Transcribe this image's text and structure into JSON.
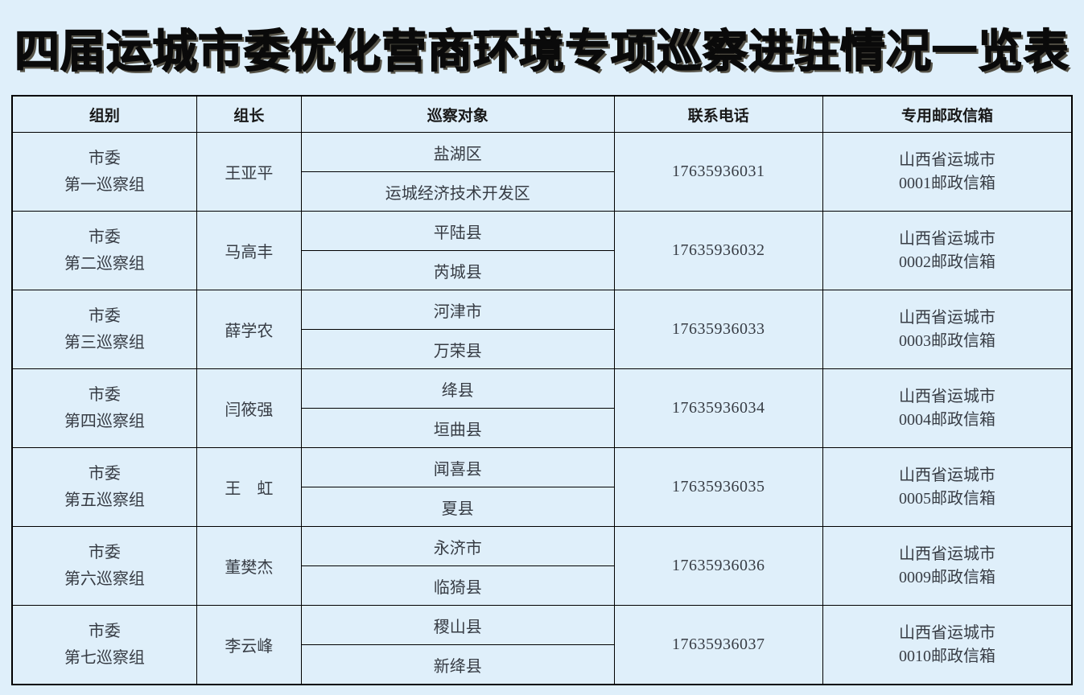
{
  "page": {
    "title": "四届运城市委优化营商环境专项巡察进驻情况一览表",
    "background_color": "#dfeffa",
    "border_color": "#000000",
    "title_color": "#0a0a0a"
  },
  "table": {
    "headers": [
      "组别",
      "组长",
      "巡察对象",
      "联系电话",
      "专用邮政信箱"
    ],
    "rows": [
      {
        "group_line1": "市委",
        "group_line2": "第一巡察组",
        "leader": "王亚平",
        "targets": [
          "盐湖区",
          "运城经济技术开发区"
        ],
        "phone": "17635936031",
        "mailbox_line1": "山西省运城市",
        "mailbox_line2": "0001邮政信箱"
      },
      {
        "group_line1": "市委",
        "group_line2": "第二巡察组",
        "leader": "马高丰",
        "targets": [
          "平陆县",
          "芮城县"
        ],
        "phone": "17635936032",
        "mailbox_line1": "山西省运城市",
        "mailbox_line2": "0002邮政信箱"
      },
      {
        "group_line1": "市委",
        "group_line2": "第三巡察组",
        "leader": "薛学农",
        "targets": [
          "河津市",
          "万荣县"
        ],
        "phone": "17635936033",
        "mailbox_line1": "山西省运城市",
        "mailbox_line2": "0003邮政信箱"
      },
      {
        "group_line1": "市委",
        "group_line2": "第四巡察组",
        "leader": "闫筱强",
        "targets": [
          "绛县",
          "垣曲县"
        ],
        "phone": "17635936034",
        "mailbox_line1": "山西省运城市",
        "mailbox_line2": "0004邮政信箱"
      },
      {
        "group_line1": "市委",
        "group_line2": "第五巡察组",
        "leader": "王　虹",
        "targets": [
          "闻喜县",
          "夏县"
        ],
        "phone": "17635936035",
        "mailbox_line1": "山西省运城市",
        "mailbox_line2": "0005邮政信箱"
      },
      {
        "group_line1": "市委",
        "group_line2": "第六巡察组",
        "leader": "董樊杰",
        "targets": [
          "永济市",
          "临猗县"
        ],
        "phone": "17635936036",
        "mailbox_line1": "山西省运城市",
        "mailbox_line2": "0009邮政信箱"
      },
      {
        "group_line1": "市委",
        "group_line2": "第七巡察组",
        "leader": "李云峰",
        "targets": [
          "稷山县",
          "新绛县"
        ],
        "phone": "17635936037",
        "mailbox_line1": "山西省运城市",
        "mailbox_line2": "0010邮政信箱"
      }
    ]
  }
}
